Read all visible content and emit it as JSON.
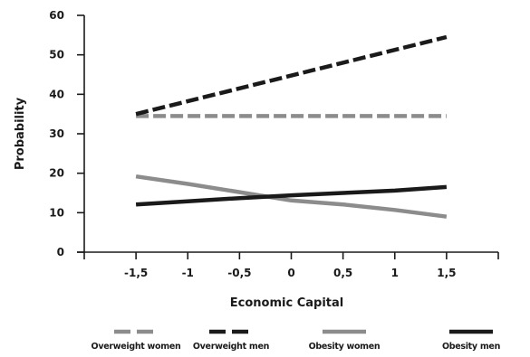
{
  "chart_data": {
    "type": "line",
    "title": "",
    "xlabel": "Economic Capital",
    "ylabel": "Probability",
    "xlim": [
      -2,
      2
    ],
    "ylim": [
      0,
      60
    ],
    "x_ticks": [
      -1.5,
      -1,
      -0.5,
      0,
      0.5,
      1,
      1.5
    ],
    "x_tick_labels": [
      "-1,5",
      "-1",
      "-0,5",
      "0",
      "0,5",
      "1",
      "1,5"
    ],
    "y_ticks": [
      0,
      10,
      20,
      30,
      40,
      50,
      60
    ],
    "y_tick_labels": [
      "0",
      "10",
      "20",
      "30",
      "40",
      "50",
      "60"
    ],
    "grid": false,
    "legend_position": "bottom",
    "series": [
      {
        "name": "Overweight women",
        "x": [
          -1.5,
          1.5
        ],
        "y": [
          34.5,
          34.5
        ],
        "color": "#8c8c8c",
        "style": "dashed"
      },
      {
        "name": "Overweight men",
        "x": [
          -1.5,
          1.5
        ],
        "y": [
          35,
          54.5
        ],
        "color": "#1a1a1a",
        "style": "dashed"
      },
      {
        "name": "Obesity women",
        "x": [
          -1.5,
          -1,
          -0.5,
          0,
          0.5,
          1,
          1.5
        ],
        "y": [
          19.2,
          17.3,
          15.2,
          13.1,
          12.1,
          10.7,
          9.0
        ],
        "color": "#8c8c8c",
        "style": "solid"
      },
      {
        "name": "Obesity men",
        "x": [
          -1.5,
          -1,
          -0.5,
          0,
          0.5,
          1,
          1.5
        ],
        "y": [
          12.1,
          12.9,
          13.7,
          14.4,
          15.0,
          15.6,
          16.5
        ],
        "color": "#1a1a1a",
        "style": "solid"
      }
    ]
  }
}
